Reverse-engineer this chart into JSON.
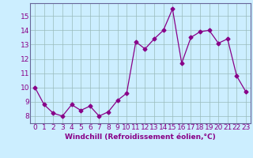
{
  "x": [
    0,
    1,
    2,
    3,
    4,
    5,
    6,
    7,
    8,
    9,
    10,
    11,
    12,
    13,
    14,
    15,
    16,
    17,
    18,
    19,
    20,
    21,
    22,
    23
  ],
  "y": [
    10.0,
    8.8,
    8.2,
    8.0,
    8.8,
    8.4,
    8.7,
    8.0,
    8.3,
    9.1,
    9.6,
    13.2,
    12.7,
    13.4,
    14.0,
    15.5,
    11.7,
    13.5,
    13.9,
    14.0,
    13.1,
    13.4,
    10.8,
    9.7
  ],
  "line_color": "#880088",
  "marker": "D",
  "marker_size": 2.5,
  "bg_color": "#cceeff",
  "grid_color": "#99bbbb",
  "xlabel": "Windchill (Refroidissement éolien,°C)",
  "xlabel_fontsize": 6.5,
  "tick_fontsize": 6.5,
  "xlim": [
    -0.5,
    23.5
  ],
  "ylim": [
    7.5,
    15.9
  ],
  "yticks": [
    8,
    9,
    10,
    11,
    12,
    13,
    14,
    15
  ],
  "xticks": [
    0,
    1,
    2,
    3,
    4,
    5,
    6,
    7,
    8,
    9,
    10,
    11,
    12,
    13,
    14,
    15,
    16,
    17,
    18,
    19,
    20,
    21,
    22,
    23
  ]
}
